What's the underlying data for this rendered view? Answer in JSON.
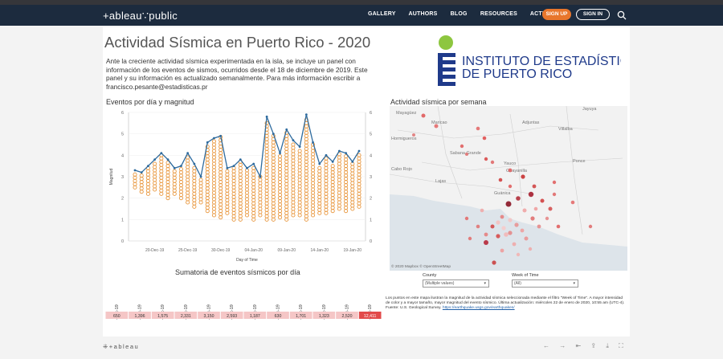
{
  "nav": {
    "logo": "+ableau∵public",
    "items": [
      "GALLERY",
      "AUTHORS",
      "BLOG",
      "RESOURCES",
      "ACTIVITY"
    ],
    "sign_up": "SIGN UP",
    "sign_in": "SIGN IN",
    "search_icon": "search-icon"
  },
  "dashboard": {
    "title": "Actividad Sísmica en Puerto Rico - 2020",
    "description": "Ante la creciente actividad sísmica experimentada en la isla, se incluye un panel con información de los eventos de sismos, ocurridos desde el 18 de diciembre de 2019. Este panel y su información es actualizado semanalmente. Para más información escribir a francisco.pesante@estadisticas.pr",
    "brand": {
      "line1": "INSTITUTO DE ESTADÍSTICAS",
      "line2": "DE PUERTO RICO",
      "color": "#1f3a8a",
      "dot_color": "#8dc63f"
    },
    "chart_section_title": "Eventos por día y magnitud",
    "map_section_title": "Actividad sísmica por semana",
    "sum_title": "Sumatoria de eventos sísmicos por día",
    "map_attribution": "© 2020 Mapbox © OpenStreetMap",
    "map_labels": [
      "Mayagüez",
      "Maricao",
      "Adjuntas",
      "Jayuya",
      "Hormigueros",
      "Sabana Grande",
      "Yauco",
      "Guayanilla",
      "Cabo Rojo",
      "Lajas",
      "Guánica",
      "Ponce",
      "Villalba"
    ],
    "filters": {
      "county_label": "County",
      "county_value": "(Multiple values)",
      "week_label": "Week of Time",
      "week_value": "(All)"
    },
    "note": "Los puntos en este mapa ilustran la magnitud de la actividad sísmica seleccionada mediante el filtro \"Week of Time\". A mayor intensidad de color y a mayor tamaño, mayor magnitud del evento sísmico. Última actualización: miércoles 22 de enero de 2020, 10:55 am (UTC-4). Fuente: U.S. Geological Survey.",
    "note_link": "https://earthquake.usgs.gov/earthquakes/"
  },
  "chart_data": {
    "type": "line",
    "xlabel": "Day of Time",
    "ylabel": "Magnitud",
    "ylim": [
      0,
      6
    ],
    "yticks": [
      0,
      1,
      2,
      3,
      4,
      5,
      6
    ],
    "xtick_labels": [
      "20-Dec-19",
      "25-Dec-19",
      "30-Dec-19",
      "04-Jan-20",
      "09-Jan-20",
      "14-Jan-20",
      "19-Jan-20"
    ],
    "days": 35,
    "series": [
      {
        "name": "",
        "values": [
          3.3,
          3.2,
          3.5,
          3.8,
          4.1,
          3.8,
          3.4,
          3.5,
          4.1,
          3.6,
          3.0,
          4.6,
          4.8,
          4.9,
          3.4,
          3.5,
          3.8,
          3.4,
          3.6,
          3.0,
          5.8,
          5.0,
          4.1,
          5.2,
          4.7,
          4.4,
          5.9,
          4.6,
          3.6,
          4.0,
          3.7,
          4.2,
          4.1,
          3.7,
          4.2
        ]
      }
    ],
    "dots_range": [
      [
        2.5,
        3.2
      ],
      [
        2.3,
        3.1
      ],
      [
        2.2,
        3.5
      ],
      [
        2.4,
        3.7
      ],
      [
        2.2,
        4.1
      ],
      [
        2.0,
        3.7
      ],
      [
        2.2,
        3.3
      ],
      [
        2.0,
        3.4
      ],
      [
        1.8,
        4.0
      ],
      [
        1.6,
        3.5
      ],
      [
        1.8,
        2.9
      ],
      [
        1.4,
        4.5
      ],
      [
        1.2,
        4.7
      ],
      [
        1.1,
        4.9
      ],
      [
        1.3,
        3.3
      ],
      [
        1.0,
        3.5
      ],
      [
        1.0,
        3.8
      ],
      [
        1.2,
        3.3
      ],
      [
        1.0,
        3.5
      ],
      [
        1.2,
        3.0
      ],
      [
        1.0,
        5.6
      ],
      [
        1.0,
        4.9
      ],
      [
        1.1,
        4.0
      ],
      [
        1.0,
        5.1
      ],
      [
        1.2,
        4.6
      ],
      [
        1.2,
        4.3
      ],
      [
        1.0,
        5.7
      ],
      [
        1.2,
        4.5
      ],
      [
        1.3,
        3.5
      ],
      [
        1.3,
        3.9
      ],
      [
        1.4,
        3.6
      ],
      [
        1.5,
        4.1
      ],
      [
        1.4,
        4.0
      ],
      [
        1.5,
        3.6
      ],
      [
        1.6,
        4.1
      ]
    ],
    "line_color": "#2e6b9e",
    "dot_color": "#e8953a",
    "grid": true
  },
  "sum_table": {
    "dates": [
      "18-Dec-19",
      "19-Dec-19",
      "20-Dec-19",
      "21-Dec-19",
      "22-Dec-19",
      "23-Dec-19",
      "24-Dec-19",
      "25-Dec-19",
      "26-Dec-19",
      "27-Dec-19",
      "28-Dec-19",
      "29-Dec-19"
    ],
    "values": [
      "650",
      "1,396",
      "1,575",
      "2,331",
      "3,150",
      "2,593",
      "1,187",
      "630",
      "1,701",
      "1,323",
      "2,520",
      "12,411"
    ]
  },
  "footer": {
    "logo": "⁜+ableau",
    "icons": [
      "undo-icon",
      "redo-icon",
      "reset-icon",
      "share-icon",
      "download-icon",
      "fullscreen-icon"
    ]
  }
}
